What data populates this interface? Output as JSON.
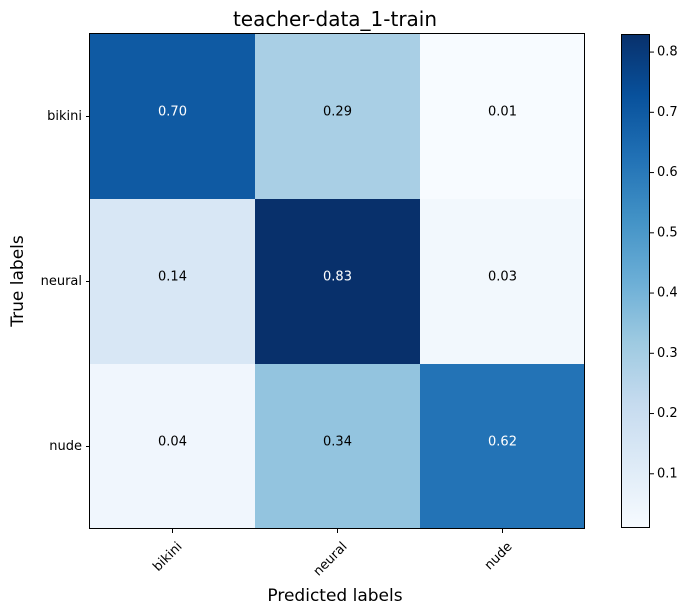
{
  "chart_data": {
    "type": "heatmap",
    "title": "teacher-data_1-train",
    "xlabel": "Predicted labels",
    "ylabel": "True labels",
    "x_categories": [
      "bikini",
      "neural",
      "nude"
    ],
    "y_categories": [
      "bikini",
      "neural",
      "nude"
    ],
    "values": [
      [
        0.7,
        0.29,
        0.01
      ],
      [
        0.14,
        0.83,
        0.03
      ],
      [
        0.04,
        0.34,
        0.62
      ]
    ],
    "value_labels": [
      [
        "0.70",
        "0.29",
        "0.01"
      ],
      [
        "0.14",
        "0.83",
        "0.03"
      ],
      [
        "0.04",
        "0.34",
        "0.62"
      ]
    ],
    "colormap": "Blues",
    "colorbar": {
      "range": [
        0.01,
        0.83
      ],
      "ticks": [
        0.1,
        0.2,
        0.3,
        0.4,
        0.5,
        0.6,
        0.7,
        0.8
      ],
      "tick_labels": [
        "0.1",
        "0.2",
        "0.3",
        "0.4",
        "0.5",
        "0.6",
        "0.7",
        "0.8"
      ]
    },
    "x_tick_rotation_deg": 45,
    "grid": false
  }
}
